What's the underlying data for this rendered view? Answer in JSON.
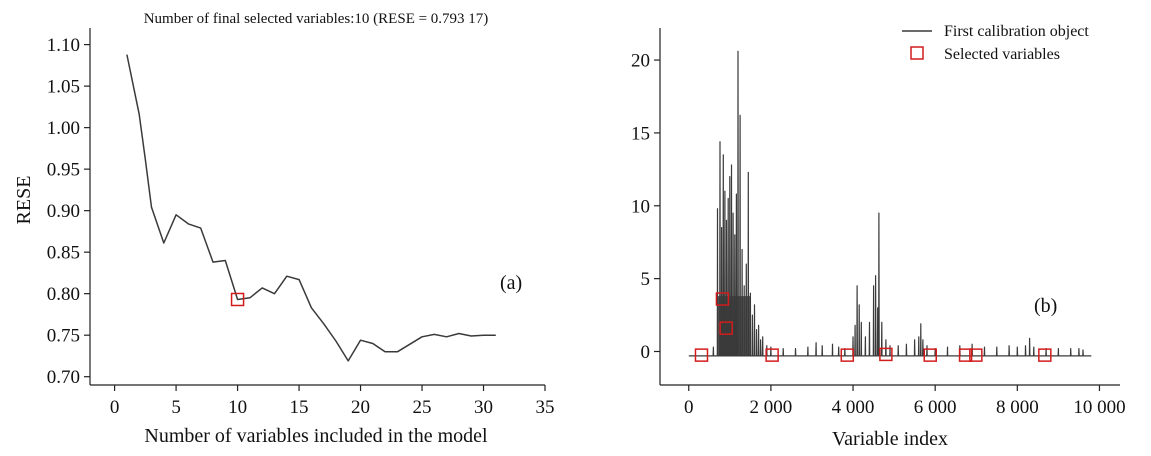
{
  "chart_data": [
    {
      "panel_label": "(a)",
      "type": "line",
      "title": "Number of final selected variables:10 (RESE = 0.793 17)",
      "xlabel": "Number of variables included in the model",
      "ylabel": "RESE",
      "xlim": [
        -2,
        35
      ],
      "ylim": [
        0.69,
        1.12
      ],
      "xticks": [
        0,
        5,
        10,
        15,
        20,
        25,
        30,
        35
      ],
      "xtick_labels": [
        "0",
        "5",
        "10",
        "15",
        "20",
        "25",
        "30",
        "35"
      ],
      "yticks": [
        0.7,
        0.75,
        0.8,
        0.85,
        0.9,
        0.95,
        1.0,
        1.05,
        1.1
      ],
      "ytick_labels": [
        "0.70",
        "0.75",
        "0.80",
        "0.85",
        "0.90",
        "0.95",
        "1.00",
        "1.05",
        "1.10"
      ],
      "grid": false,
      "series": [
        {
          "x": [
            1,
            2,
            2.5,
            3,
            4,
            5,
            6,
            7,
            8,
            9,
            10,
            11,
            12,
            13,
            14,
            15,
            16,
            17,
            18,
            19,
            20,
            21,
            22,
            23,
            24,
            25,
            26,
            27,
            28,
            29,
            30,
            31
          ],
          "y": [
            1.088,
            1.016,
            0.962,
            0.904,
            0.861,
            0.895,
            0.884,
            0.879,
            0.838,
            0.84,
            0.793,
            0.795,
            0.807,
            0.8,
            0.821,
            0.817,
            0.783,
            0.764,
            0.743,
            0.719,
            0.744,
            0.74,
            0.73,
            0.73,
            0.739,
            0.748,
            0.751,
            0.748,
            0.752,
            0.749,
            0.75,
            0.75
          ],
          "color": "#3a3a3a"
        }
      ],
      "highlight": {
        "x": 10,
        "y": 0.793,
        "color": "#d21c1c"
      }
    },
    {
      "panel_label": "(b)",
      "type": "line",
      "xlabel": "Variable index",
      "ylabel": "",
      "xlim": [
        -700,
        10500
      ],
      "ylim": [
        -2.3,
        22.2
      ],
      "xticks": [
        0,
        2000,
        4000,
        6000,
        8000,
        10000
      ],
      "xtick_labels": [
        "0",
        "2 000",
        "4 000",
        "6 000",
        "8 000",
        "10 000"
      ],
      "yticks": [
        0,
        5,
        10,
        15,
        20
      ],
      "ytick_labels": [
        "0",
        "5",
        "10",
        "15",
        "20"
      ],
      "grid": false,
      "legend": {
        "placement": "top-right",
        "entries": [
          {
            "label": "First calibration object",
            "marker": "line",
            "color": "#3a3a3a"
          },
          {
            "label": "Selected variables",
            "marker": "square",
            "color": "#d21c1c"
          }
        ]
      },
      "series": [
        {
          "name": "First calibration object",
          "color": "#3a3a3a",
          "baseline": -0.3,
          "x_start": 0,
          "x_end": 9800,
          "peaks": [
            [
              600,
              0.3
            ],
            [
              700,
              9.8
            ],
            [
              760,
              14.4
            ],
            [
              800,
              8.5
            ],
            [
              840,
              13.5
            ],
            [
              880,
              11.0
            ],
            [
              920,
              9.0
            ],
            [
              960,
              10.5
            ],
            [
              1000,
              12.0
            ],
            [
              1040,
              12.8
            ],
            [
              1080,
              9.5
            ],
            [
              1120,
              8.0
            ],
            [
              1160,
              10.8
            ],
            [
              1200,
              20.6
            ],
            [
              1250,
              16.2
            ],
            [
              1300,
              7.0
            ],
            [
              1350,
              4.5
            ],
            [
              1400,
              6.0
            ],
            [
              1450,
              12.3
            ],
            [
              1500,
              4.0
            ],
            [
              1550,
              2.5
            ],
            [
              1600,
              3.2
            ],
            [
              1650,
              1.5
            ],
            [
              1700,
              1.8
            ],
            [
              1750,
              0.8
            ],
            [
              1800,
              1.0
            ],
            [
              1900,
              0.4
            ],
            [
              2000,
              0.3
            ],
            [
              2300,
              0.2
            ],
            [
              2600,
              0.2
            ],
            [
              2900,
              0.3
            ],
            [
              3100,
              0.6
            ],
            [
              3250,
              0.4
            ],
            [
              3500,
              0.5
            ],
            [
              3650,
              0.3
            ],
            [
              3800,
              0.2
            ],
            [
              4000,
              1.0
            ],
            [
              4050,
              1.8
            ],
            [
              4100,
              4.5
            ],
            [
              4150,
              3.2
            ],
            [
              4200,
              2.0
            ],
            [
              4300,
              1.0
            ],
            [
              4400,
              2.0
            ],
            [
              4500,
              4.5
            ],
            [
              4550,
              5.2
            ],
            [
              4600,
              3.0
            ],
            [
              4630,
              9.5
            ],
            [
              4700,
              2.0
            ],
            [
              4800,
              0.8
            ],
            [
              4900,
              0.4
            ],
            [
              5100,
              0.4
            ],
            [
              5300,
              0.5
            ],
            [
              5500,
              0.8
            ],
            [
              5600,
              1.0
            ],
            [
              5650,
              1.9
            ],
            [
              5700,
              0.8
            ],
            [
              5800,
              0.4
            ],
            [
              6000,
              0.2
            ],
            [
              6300,
              0.3
            ],
            [
              6600,
              0.4
            ],
            [
              6900,
              0.5
            ],
            [
              7200,
              0.3
            ],
            [
              7500,
              0.3
            ],
            [
              7800,
              0.4
            ],
            [
              8000,
              0.3
            ],
            [
              8200,
              0.4
            ],
            [
              8300,
              0.9
            ],
            [
              8400,
              0.3
            ],
            [
              8700,
              0.2
            ],
            [
              9000,
              0.2
            ],
            [
              9300,
              0.2
            ],
            [
              9500,
              0.2
            ],
            [
              9600,
              0.1
            ]
          ]
        },
        {
          "name": "Selected variables",
          "color": "#d21c1c",
          "x": [
            310,
            820,
            910,
            2030,
            3860,
            4800,
            5880,
            6740,
            6990,
            8670
          ],
          "y": [
            -0.25,
            3.6,
            1.6,
            -0.25,
            -0.25,
            -0.2,
            -0.25,
            -0.25,
            -0.25,
            -0.25
          ]
        }
      ]
    }
  ]
}
